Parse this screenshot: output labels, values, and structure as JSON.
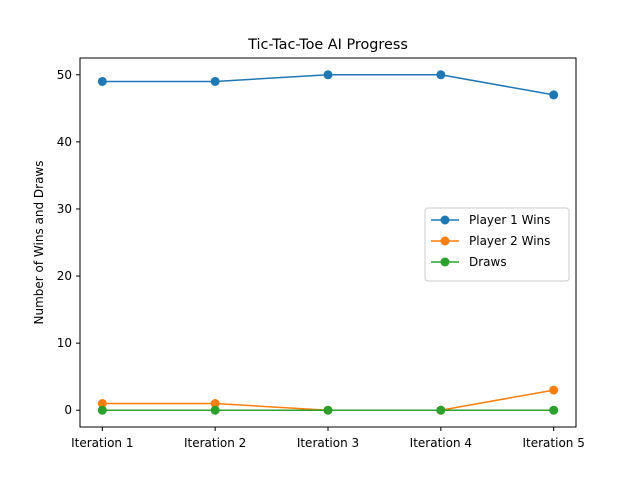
{
  "chart_data": {
    "type": "line",
    "title": "Tic-Tac-Toe AI Progress",
    "xlabel": "",
    "ylabel": "Number of Wins and Draws",
    "categories": [
      "Iteration 1",
      "Iteration 2",
      "Iteration 3",
      "Iteration 4",
      "Iteration 5"
    ],
    "ylim": [
      -2.5,
      52.5
    ],
    "yticks": [
      0,
      10,
      20,
      30,
      40,
      50
    ],
    "grid": false,
    "legend_position": "center-right",
    "series": [
      {
        "name": "Player 1 Wins",
        "color": "#1f77b4",
        "values": [
          49,
          49,
          50,
          50,
          47
        ]
      },
      {
        "name": "Player 2 Wins",
        "color": "#ff7f0e",
        "values": [
          1,
          1,
          0,
          0,
          3
        ]
      },
      {
        "name": "Draws",
        "color": "#2ca02c",
        "values": [
          0,
          0,
          0,
          0,
          0
        ]
      }
    ]
  }
}
